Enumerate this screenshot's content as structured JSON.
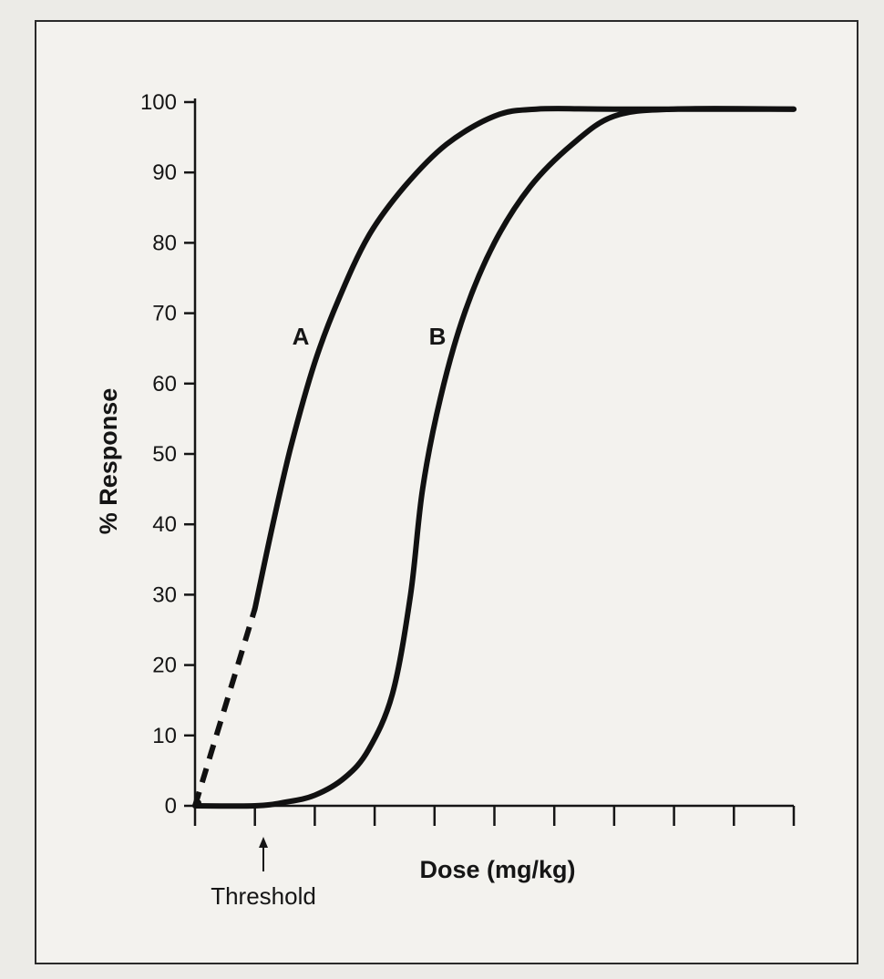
{
  "chart_data": {
    "type": "line",
    "title": "",
    "xlabel": "Dose (mg/kg)",
    "ylabel": "% Response",
    "ylim": [
      0,
      100
    ],
    "yticks": [
      0,
      10,
      20,
      30,
      40,
      50,
      60,
      70,
      80,
      90,
      100
    ],
    "xlim": [
      0,
      10
    ],
    "x_tick_count": 10,
    "grid": false,
    "series": [
      {
        "name": "A",
        "solid": [
          [
            1.0,
            28
          ],
          [
            1.3,
            40
          ],
          [
            1.6,
            51
          ],
          [
            2.0,
            63
          ],
          [
            2.4,
            72
          ],
          [
            2.9,
            81
          ],
          [
            3.5,
            88
          ],
          [
            4.2,
            94
          ],
          [
            5.0,
            98
          ],
          [
            5.7,
            99
          ],
          [
            7.0,
            99
          ],
          [
            10.0,
            99
          ]
        ],
        "dashed": [
          [
            0.0,
            0
          ],
          [
            1.0,
            28
          ]
        ]
      },
      {
        "name": "B",
        "points": [
          [
            0.0,
            0
          ],
          [
            1.0,
            0
          ],
          [
            1.5,
            0.5
          ],
          [
            2.0,
            1.5
          ],
          [
            2.5,
            4
          ],
          [
            2.9,
            8
          ],
          [
            3.3,
            16
          ],
          [
            3.6,
            30
          ],
          [
            3.8,
            45
          ],
          [
            4.1,
            58
          ],
          [
            4.5,
            70
          ],
          [
            5.0,
            80
          ],
          [
            5.6,
            88
          ],
          [
            6.3,
            94
          ],
          [
            7.0,
            98
          ],
          [
            8.0,
            99
          ],
          [
            10.0,
            99
          ]
        ]
      }
    ],
    "annotations": [
      {
        "text": "Threshold",
        "x": 1.0,
        "y": 0
      }
    ]
  }
}
